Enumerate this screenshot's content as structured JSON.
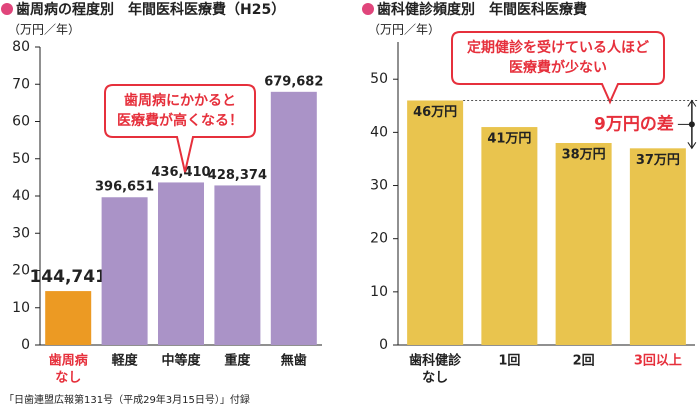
{
  "chart_data": [
    {
      "type": "bar",
      "title": "歯周病の程度別　年間医科医療費（H25）",
      "y_unit": "（万円／年）",
      "categories": [
        [
          "歯周病",
          "なし"
        ],
        [
          "軽度"
        ],
        [
          "中等度"
        ],
        [
          "重度"
        ],
        [
          "無歯"
        ]
      ],
      "values": [
        14.4741,
        39.6651,
        43.641,
        42.8374,
        67.9682
      ],
      "value_labels": [
        "144,741",
        "396,651",
        "436,410",
        "428,374",
        "679,682"
      ],
      "value_label_position": "above",
      "colors": [
        "#ec9a23",
        "#aa93c7",
        "#aa93c7",
        "#aa93c7",
        "#aa93c7"
      ],
      "label_colors": [
        "#e6303c",
        "#222",
        "#222",
        "#222",
        "#222"
      ],
      "ylim": [
        0,
        80
      ],
      "yticks": [
        0,
        10,
        20,
        30,
        40,
        50,
        60,
        70,
        80
      ],
      "grid": false,
      "callout": [
        "歯周病にかかると",
        "医療費が高くなる！"
      ]
    },
    {
      "type": "bar",
      "title": "歯科健診頻度別　年間医科医療費",
      "y_unit": "（万円／年）",
      "categories": [
        [
          "歯科健診",
          "なし"
        ],
        [
          "1回"
        ],
        [
          "2回"
        ],
        [
          "3回以上"
        ]
      ],
      "values": [
        46,
        41,
        38,
        37
      ],
      "value_labels": [
        "46万円",
        "41万円",
        "38万円",
        "37万円"
      ],
      "value_label_position": "inside",
      "colors": [
        "#e9c44e",
        "#e9c44e",
        "#e9c44e",
        "#e9c44e"
      ],
      "label_colors": [
        "#222",
        "#222",
        "#222",
        "#e6303c"
      ],
      "ylim": [
        0,
        57
      ],
      "yticks": [
        0,
        10,
        20,
        30,
        40,
        50
      ],
      "grid": false,
      "callout": [
        "定期健診を受けている人ほど",
        "医療費が少ない"
      ],
      "difference_label": "9万円の差"
    }
  ],
  "source": "「日歯連盟広報第131号（平成29年3月15日号）」付録"
}
